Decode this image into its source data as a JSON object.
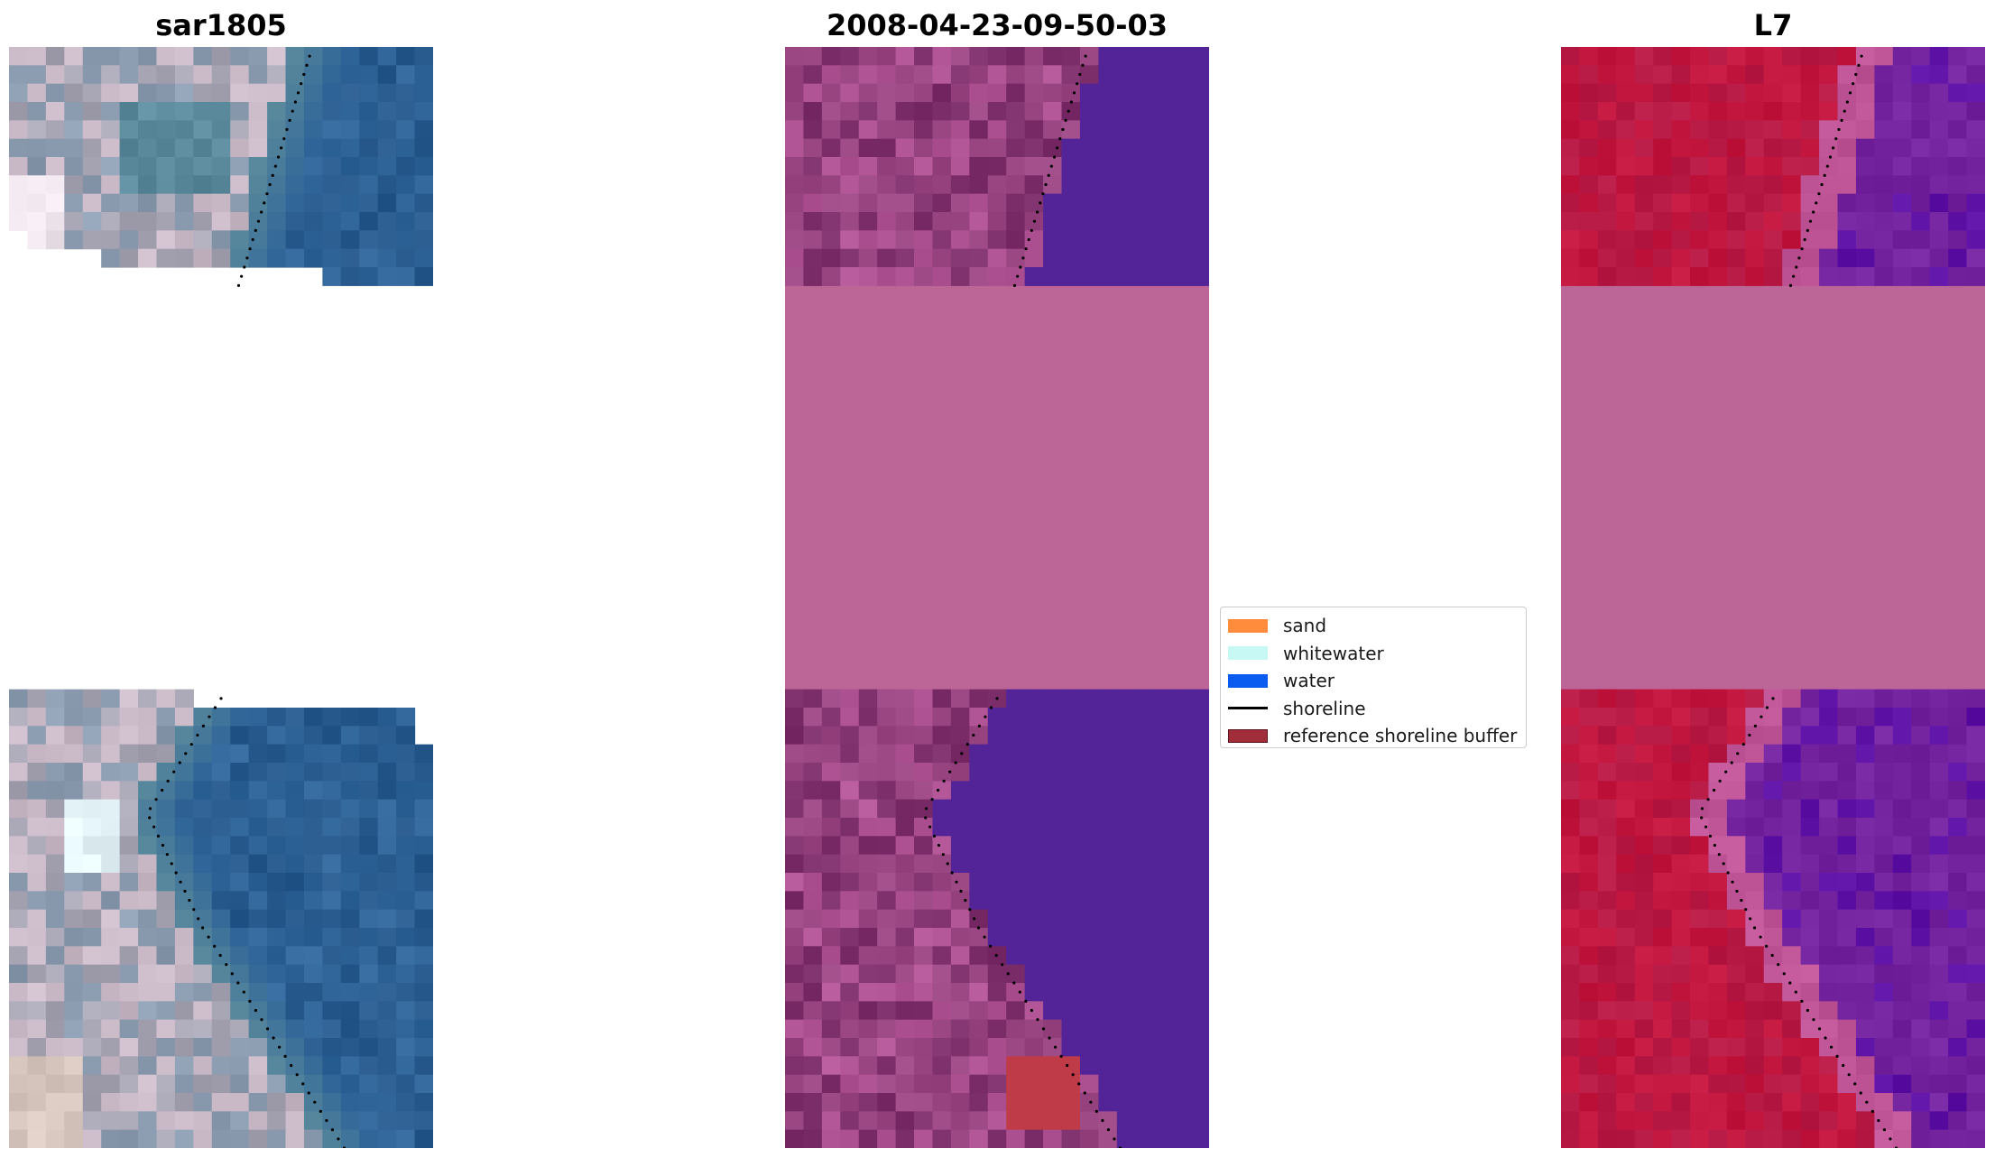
{
  "panels": [
    {
      "title": "sar1805",
      "palette": {
        "land_light": "#c9b9c6",
        "land_mid": "#a7a4b4",
        "land_grey": "#8c9cb0",
        "teal": "#5a8a9c",
        "water": "#2f6598",
        "water_dark": "#295a8d",
        "bright": "#f0e6ee",
        "bright_cyan": "#e4f4f8",
        "sand_tint": "#d8c8c0"
      }
    },
    {
      "title": "2008-04-23-09-50-03",
      "palette": {
        "land": "#9a4784",
        "land_dark": "#7d2f6c",
        "land_light": "#b25596",
        "water": "#532497",
        "nodata": "#bc6698",
        "buffer": "#c03b48"
      }
    },
    {
      "title": "L7",
      "palette": {
        "land": "#c2163f",
        "land_alt": "#b81a46",
        "edge": "#bf5596",
        "water": "#7524a0",
        "water_dark": "#5c11a4",
        "nodata": "#bc6698"
      }
    }
  ],
  "legend": {
    "items": [
      {
        "label": "sand",
        "type": "patch",
        "color": "#ff8c3d"
      },
      {
        "label": "whitewater",
        "type": "patch",
        "color": "#c8f8f4"
      },
      {
        "label": "water",
        "type": "patch",
        "color": "#0a5cf0"
      },
      {
        "label": "shoreline",
        "type": "line",
        "color": "#000000"
      },
      {
        "label": "reference shoreline buffer",
        "type": "patch",
        "color": "#a12d3b",
        "edge": "#5a1620"
      }
    ]
  }
}
